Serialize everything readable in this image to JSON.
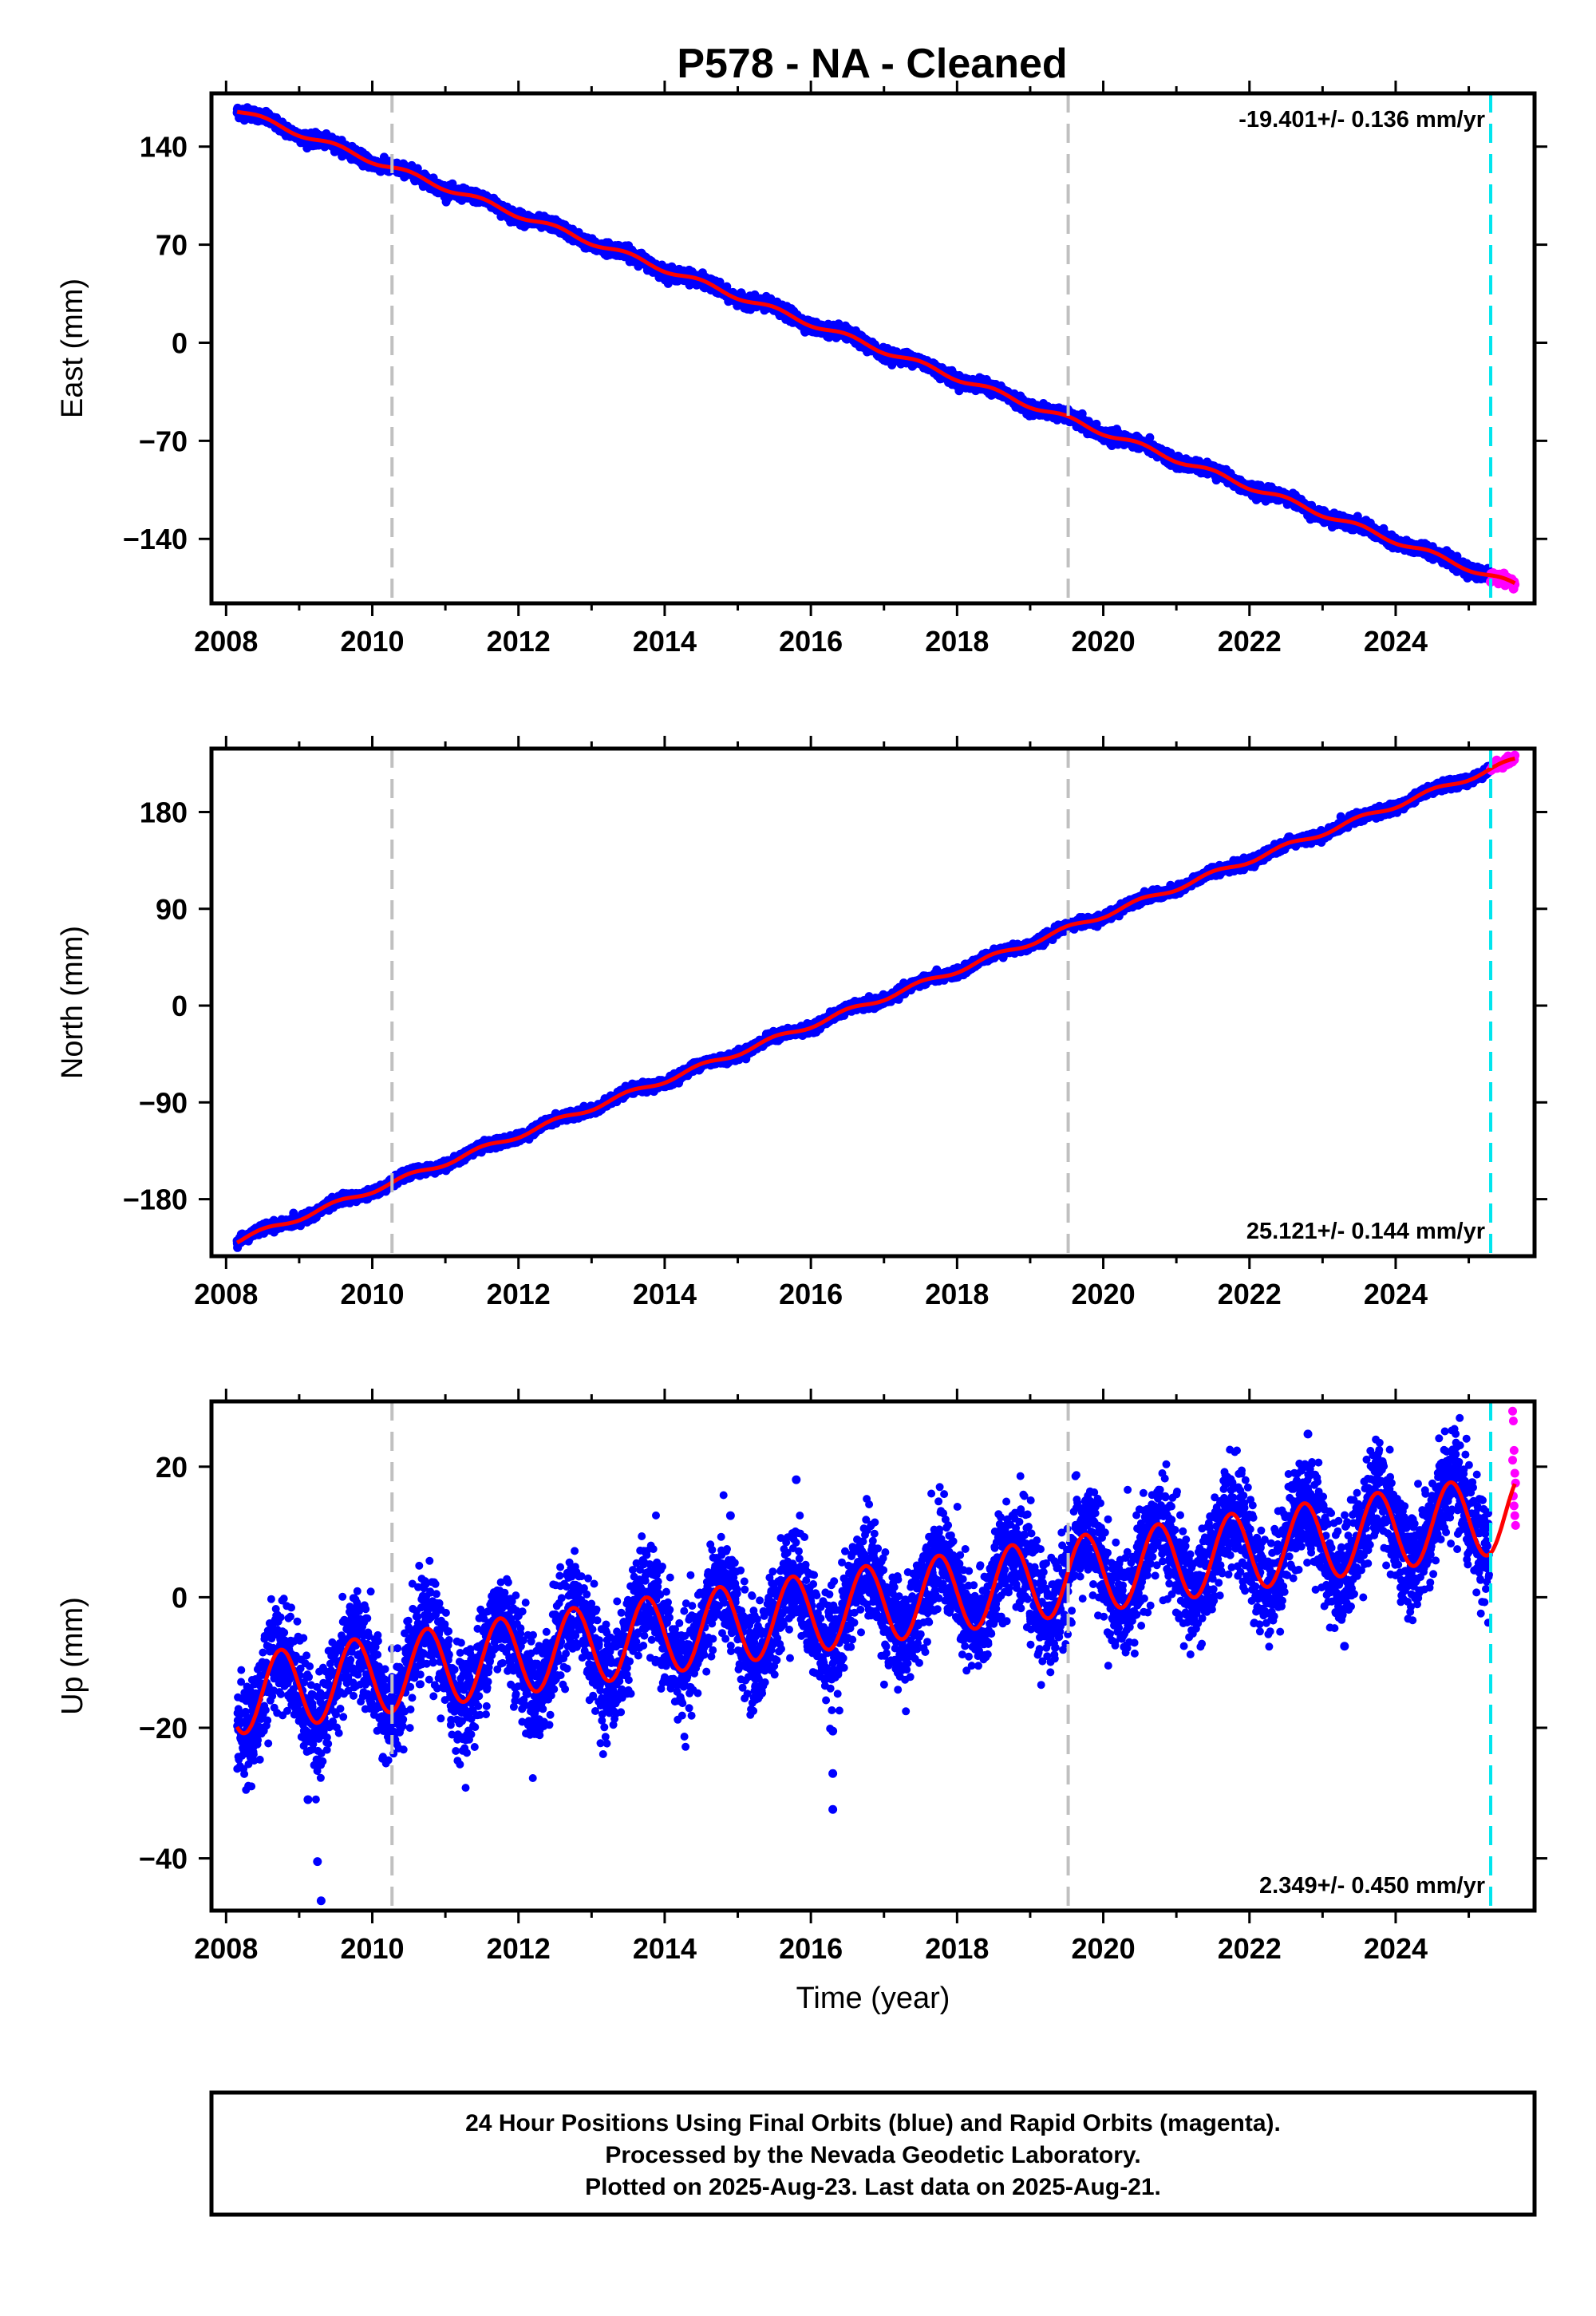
{
  "title": "P578  - NA - Cleaned",
  "footer": {
    "lines": [
      "24 Hour Positions Using Final Orbits (blue) and Rapid Orbits (magenta).",
      "Processed by the Nevada Geodetic Laboratory.",
      "Plotted on 2025-Aug-23. Last data on 2025-Aug-21."
    ]
  },
  "colors": {
    "final_orbits": "#0000ff",
    "rapid_orbits": "#ff00ff",
    "model_fit": "#ff0000",
    "equipment_change_lines": "#c0c0c0",
    "rapid_start_line": "#00e5ee"
  },
  "chart_data": [
    {
      "type": "scatter",
      "component": "east",
      "title": "",
      "xlabel": "",
      "ylabel": "East (mm)",
      "xlim": [
        2007.8,
        2025.9
      ],
      "ylim": [
        -186,
        178
      ],
      "x_ticks": [
        2008,
        2010,
        2012,
        2014,
        2016,
        2018,
        2020,
        2022,
        2024
      ],
      "y_ticks": [
        -140,
        -70,
        0,
        70,
        140
      ],
      "rate_label": "-19.401+/- 0.136 mm/yr",
      "rate_label_position": "top-right",
      "trend": {
        "x": [
          2008.15,
          2025.63
        ],
        "y": [
          166,
          -173
        ]
      },
      "seasonal_amplitude_mm": 2,
      "noise_mm": 2,
      "equipment_change_years": [
        2010.27,
        2019.52
      ],
      "rapid_orbits_start_year": 2025.3,
      "grid": false
    },
    {
      "type": "scatter",
      "component": "north",
      "title": "",
      "xlabel": "",
      "ylabel": "North (mm)",
      "xlim": [
        2007.8,
        2025.9
      ],
      "ylim": [
        -233,
        239
      ],
      "x_ticks": [
        2008,
        2010,
        2012,
        2014,
        2016,
        2018,
        2020,
        2022,
        2024
      ],
      "y_ticks": [
        -180,
        -90,
        0,
        90,
        180
      ],
      "rate_label": "25.121+/- 0.144 mm/yr",
      "rate_label_position": "bottom-right",
      "trend": {
        "x": [
          2008.15,
          2025.63
        ],
        "y": [
          -219,
          228
        ]
      },
      "seasonal_amplitude_mm": 2.5,
      "noise_mm": 2,
      "equipment_change_years": [
        2010.27,
        2019.52
      ],
      "rapid_orbits_start_year": 2025.3,
      "grid": false
    },
    {
      "type": "scatter",
      "component": "up",
      "title": "",
      "xlabel": "Time (year)",
      "ylabel": "Up (mm)",
      "xlim": [
        2007.8,
        2025.9
      ],
      "ylim": [
        -48,
        30
      ],
      "x_ticks": [
        2008,
        2010,
        2012,
        2014,
        2016,
        2018,
        2020,
        2022,
        2024
      ],
      "y_ticks": [
        -40,
        -20,
        0,
        20
      ],
      "rate_label": "2.349+/- 0.450 mm/yr",
      "rate_label_position": "bottom-right",
      "trend": {
        "x": [
          2008.15,
          2025.63
        ],
        "y": [
          -15,
          13
        ]
      },
      "seasonal_amplitude_mm": 6,
      "seasonal_peak_year_fraction": 0.75,
      "noise_mm": 4,
      "outliers": [
        {
          "x": 2009.25,
          "y": -40.5
        },
        {
          "x": 2009.3,
          "y": -46.5
        },
        {
          "x": 2009.12,
          "y": -31
        },
        {
          "x": 2016.3,
          "y": -20.5
        },
        {
          "x": 2016.3,
          "y": -27
        },
        {
          "x": 2016.3,
          "y": -32.5
        },
        {
          "x": 2014.9,
          "y": 12.5
        },
        {
          "x": 2015.8,
          "y": 18
        },
        {
          "x": 2022.8,
          "y": 25
        },
        {
          "x": 2023.3,
          "y": -7.5
        }
      ],
      "rapid_orbit_points": [
        {
          "x": 2025.6,
          "y": 28.5
        },
        {
          "x": 2025.61,
          "y": 27
        },
        {
          "x": 2025.62,
          "y": 22.5
        },
        {
          "x": 2025.6,
          "y": 21
        },
        {
          "x": 2025.63,
          "y": 19
        },
        {
          "x": 2025.64,
          "y": 17.5
        },
        {
          "x": 2025.61,
          "y": 15.5
        },
        {
          "x": 2025.62,
          "y": 14
        },
        {
          "x": 2025.63,
          "y": 12.5
        },
        {
          "x": 2025.64,
          "y": 11
        }
      ],
      "equipment_change_years": [
        2010.27,
        2019.52
      ],
      "rapid_orbits_start_year": 2025.3,
      "grid": false
    }
  ]
}
